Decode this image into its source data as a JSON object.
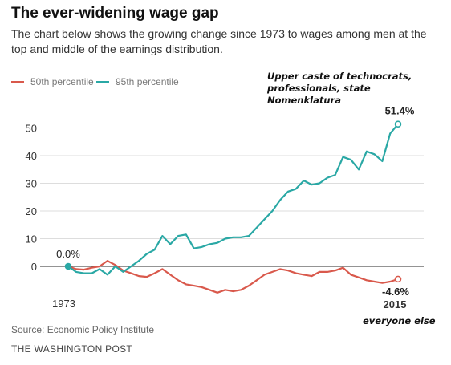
{
  "header": {
    "title": "The ever-widening wage gap",
    "subtitle": "The chart below shows the growing change since 1973 to wages among men at the top and middle of the earnings distribution."
  },
  "annotations": {
    "top": "Upper caste of technocrats, professionals, state Nomenklatura",
    "bottom": "everyone else"
  },
  "footer": {
    "source": "Source: Economic Policy Institute",
    "credit": "THE WASHINGTON POST"
  },
  "chart_data": {
    "type": "line",
    "title": "The ever-widening wage gap",
    "xlabel": "",
    "ylabel": "",
    "xlim": [
      1973,
      2015
    ],
    "ylim": [
      -6,
      54
    ],
    "yticks": [
      0,
      10,
      20,
      30,
      40,
      50
    ],
    "x_tick_labels": [
      {
        "x": 1973,
        "label": "1973"
      },
      {
        "x": 2015,
        "label": "2015"
      }
    ],
    "grid": true,
    "legend_placement": "top-left",
    "x": [
      1973,
      1974,
      1975,
      1976,
      1977,
      1978,
      1979,
      1980,
      1981,
      1982,
      1983,
      1984,
      1985,
      1986,
      1987,
      1988,
      1989,
      1990,
      1991,
      1992,
      1993,
      1994,
      1995,
      1996,
      1997,
      1998,
      1999,
      2000,
      2001,
      2002,
      2003,
      2004,
      2005,
      2006,
      2007,
      2008,
      2009,
      2010,
      2011,
      2012,
      2013,
      2014,
      2015
    ],
    "series": [
      {
        "name": "50th percentile",
        "color": "#d9594c",
        "values": [
          0,
          -1,
          -1.2,
          -0.5,
          0,
          2,
          0.5,
          -1.5,
          -2.5,
          -3.5,
          -3.8,
          -2.5,
          -1,
          -3,
          -5,
          -6.5,
          -7,
          -7.5,
          -8.5,
          -9.5,
          -8.5,
          -9,
          -8.5,
          -7,
          -5,
          -3,
          -2,
          -1,
          -1.5,
          -2.5,
          -3,
          -3.5,
          -2,
          -2,
          -1.5,
          -0.5,
          -3,
          -4,
          -5,
          -5.5,
          -6,
          -5.5,
          -4.6
        ]
      },
      {
        "name": "95th percentile",
        "color": "#2aa8a5",
        "values": [
          0,
          -2,
          -2.5,
          -2.5,
          -1,
          -3,
          0,
          -2,
          0,
          2,
          4.5,
          6,
          11,
          8,
          11,
          11.5,
          6.5,
          7,
          8,
          8.5,
          10,
          10.5,
          10.5,
          11,
          14,
          17,
          20,
          24,
          27,
          28,
          31,
          29.5,
          30,
          32,
          33,
          39.5,
          38.5,
          35,
          41.5,
          40.5,
          38,
          48,
          51.4
        ]
      }
    ],
    "point_labels": [
      {
        "series": "95th percentile",
        "x": 1973,
        "y": 0,
        "label": "0.0%"
      },
      {
        "series": "95th percentile",
        "x": 2015,
        "y": 51.4,
        "label": "51.4%"
      },
      {
        "series": "50th percentile",
        "x": 2015,
        "y": -4.6,
        "label": "-4.6%"
      }
    ]
  }
}
